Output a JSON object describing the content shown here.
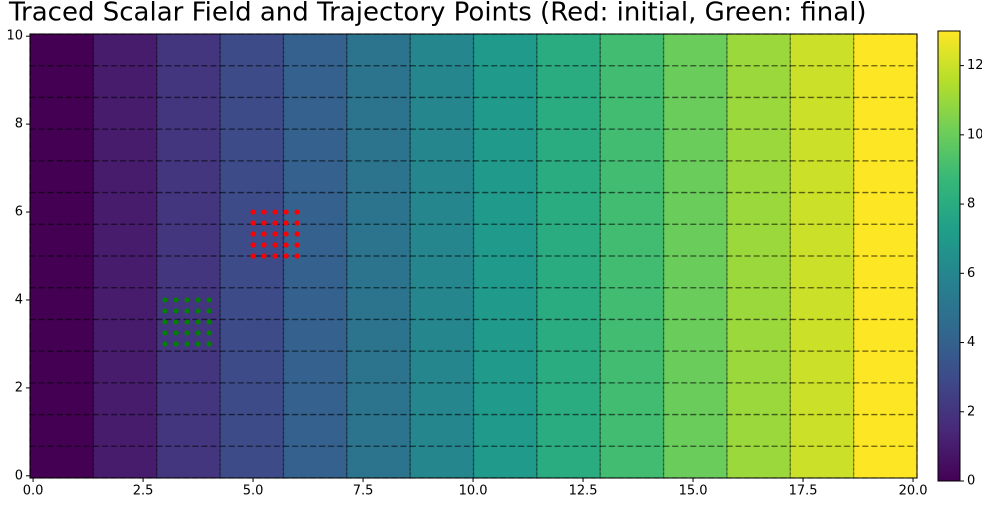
{
  "chart_data": {
    "type": "heatmap",
    "title": "Traced Scalar Field and Trajectory Points (Red: initial, Green: final)",
    "z": [
      [
        0,
        1,
        2,
        3,
        4,
        5,
        6,
        7,
        8,
        9,
        10,
        11,
        12,
        13
      ],
      [
        0,
        1,
        2,
        3,
        4,
        5,
        6,
        7,
        8,
        9,
        10,
        11,
        12,
        13
      ],
      [
        0,
        1,
        2,
        3,
        4,
        5,
        6,
        7,
        8,
        9,
        10,
        11,
        12,
        13
      ],
      [
        0,
        1,
        2,
        3,
        4,
        5,
        6,
        7,
        8,
        9,
        10,
        11,
        12,
        13
      ],
      [
        0,
        1,
        2,
        3,
        4,
        5,
        6,
        7,
        8,
        9,
        10,
        11,
        12,
        13
      ],
      [
        0,
        1,
        2,
        3,
        4,
        5,
        6,
        7,
        8,
        9,
        10,
        11,
        12,
        13
      ],
      [
        0,
        1,
        2,
        3,
        4,
        5,
        6,
        7,
        8,
        9,
        10,
        11,
        12,
        13
      ],
      [
        0,
        1,
        2,
        3,
        4,
        5,
        6,
        7,
        8,
        9,
        10,
        11,
        12,
        13
      ],
      [
        0,
        1,
        2,
        3,
        4,
        5,
        6,
        7,
        8,
        9,
        10,
        11,
        12,
        13
      ],
      [
        0,
        1,
        2,
        3,
        4,
        5,
        6,
        7,
        8,
        9,
        10,
        11,
        12,
        13
      ],
      [
        0,
        1,
        2,
        3,
        4,
        5,
        6,
        7,
        8,
        9,
        10,
        11,
        12,
        13
      ],
      [
        0,
        1,
        2,
        3,
        4,
        5,
        6,
        7,
        8,
        9,
        10,
        11,
        12,
        13
      ],
      [
        0,
        1,
        2,
        3,
        4,
        5,
        6,
        7,
        8,
        9,
        10,
        11,
        12,
        13
      ],
      [
        0,
        1,
        2,
        3,
        4,
        5,
        6,
        7,
        8,
        9,
        10,
        11,
        12,
        13
      ]
    ],
    "colormap": "viridis",
    "grid": true,
    "series": [
      {
        "color": "#ff0000",
        "x": [
          5,
          5.25,
          5.5,
          5.75,
          6,
          5,
          5.25,
          5.5,
          5.75,
          6,
          5,
          5.25,
          5.5,
          5.75,
          6,
          5,
          5.25,
          5.5,
          5.75,
          6,
          5,
          5.25,
          5.5,
          5.75,
          6
        ],
        "y": [
          5,
          5,
          5,
          5,
          5,
          5.25,
          5.25,
          5.25,
          5.25,
          5.25,
          5.5,
          5.5,
          5.5,
          5.5,
          5.5,
          5.75,
          5.75,
          5.75,
          5.75,
          5.75,
          6,
          6,
          6,
          6,
          6
        ]
      },
      {
        "color": "#008000",
        "x": [
          3,
          3.25,
          3.5,
          3.75,
          4,
          3,
          3.25,
          3.5,
          3.75,
          4,
          3,
          3.25,
          3.5,
          3.75,
          4,
          3,
          3.25,
          3.5,
          3.75,
          4,
          3,
          3.25,
          3.5,
          3.75,
          4
        ],
        "y": [
          3,
          3,
          3,
          3,
          3,
          3.25,
          3.25,
          3.25,
          3.25,
          3.25,
          3.5,
          3.5,
          3.5,
          3.5,
          3.5,
          3.75,
          3.75,
          3.75,
          3.75,
          3.75,
          4,
          4,
          4,
          4,
          4
        ]
      }
    ],
    "xlim": [
      -0.07,
      20.09
    ],
    "ylim": [
      -0.05,
      10.05
    ],
    "xticks": [
      {
        "value": 0,
        "label": "0.0"
      },
      {
        "value": 2.5,
        "label": "2.5"
      },
      {
        "value": 5,
        "label": "5.0"
      },
      {
        "value": 7.5,
        "label": "7.5"
      },
      {
        "value": 10,
        "label": "10.0"
      },
      {
        "value": 12.5,
        "label": "12.5"
      },
      {
        "value": 15,
        "label": "15.0"
      },
      {
        "value": 17.5,
        "label": "17.5"
      },
      {
        "value": 20,
        "label": "20.0"
      }
    ],
    "yticks": [
      0,
      2,
      4,
      6,
      8,
      10
    ],
    "colorbar": {
      "lim": [
        0,
        13
      ],
      "ticks": [
        0,
        2,
        4,
        6,
        8,
        10,
        12
      ]
    }
  }
}
